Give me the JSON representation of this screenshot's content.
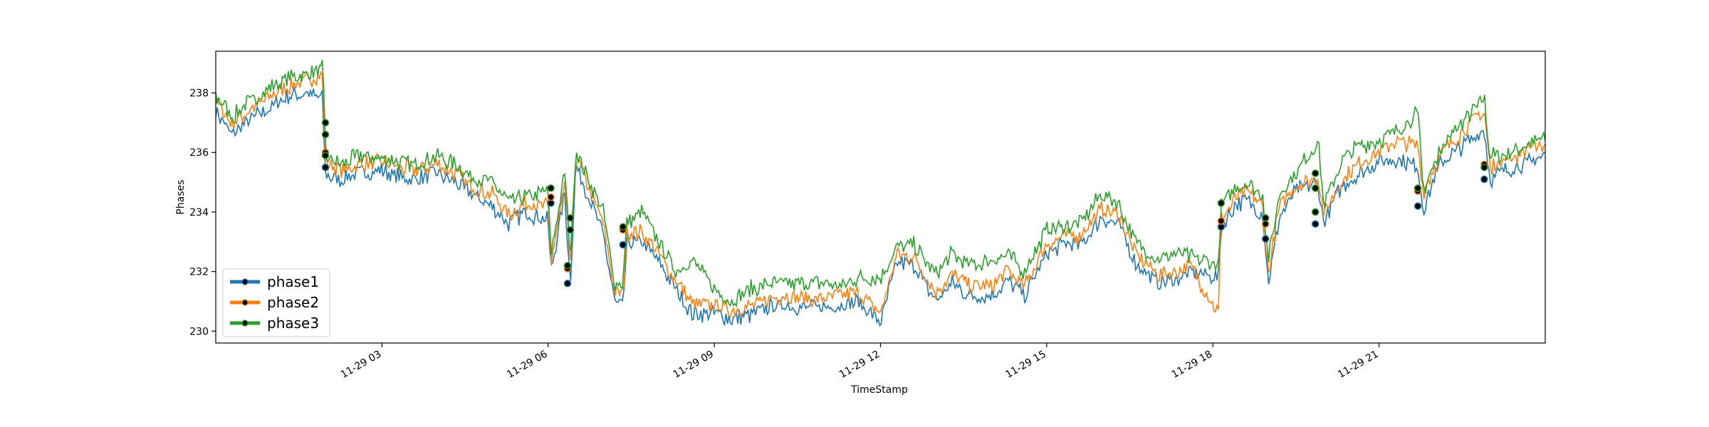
{
  "chart_data": {
    "type": "line",
    "xlabel": "TimeStamp",
    "ylabel": "Phases",
    "x_ticks": [
      "11-29 03",
      "11-29 06",
      "11-29 09",
      "11-29 12",
      "11-29 15",
      "11-29 18",
      "11-29 21"
    ],
    "y_ticks": [
      "230",
      "232",
      "234",
      "236",
      "238"
    ],
    "ylim": [
      229.6,
      239.4
    ],
    "xlim_hours": [
      0,
      24
    ],
    "grid": false,
    "legend": "bottom-left",
    "x": [
      0.0,
      0.3,
      0.6,
      1.0,
      1.3,
      1.6,
      1.94,
      1.96,
      2.0,
      2.3,
      2.6,
      3.0,
      3.3,
      3.6,
      4.0,
      4.3,
      4.6,
      5.0,
      5.3,
      5.6,
      6.0,
      6.05,
      6.3,
      6.4,
      6.5,
      6.8,
      7.0,
      7.2,
      7.35,
      7.42,
      7.7,
      8.0,
      8.3,
      8.6,
      9.0,
      9.3,
      9.6,
      10.0,
      10.3,
      10.6,
      11.0,
      11.3,
      11.6,
      12.0,
      12.3,
      12.6,
      13.0,
      13.3,
      13.6,
      14.0,
      14.3,
      14.6,
      15.0,
      15.3,
      15.6,
      16.0,
      16.3,
      16.6,
      17.0,
      17.3,
      17.6,
      18.1,
      18.15,
      18.4,
      18.6,
      18.9,
      19.0,
      19.2,
      19.5,
      19.9,
      20.0,
      20.3,
      20.6,
      21.0,
      21.3,
      21.7,
      21.8,
      22.1,
      22.5,
      22.9,
      23.0,
      23.3,
      23.6,
      24.0
    ],
    "series": [
      {
        "name": "phase1",
        "color": "#1f77b4",
        "values": [
          237.4,
          236.6,
          237.1,
          237.5,
          237.9,
          238.0,
          237.8,
          235.5,
          235.2,
          235.1,
          235.3,
          235.4,
          235.2,
          235.1,
          235.3,
          235.0,
          234.6,
          234.2,
          233.6,
          234.0,
          233.7,
          232.0,
          234.6,
          231.6,
          235.6,
          234.2,
          233.2,
          231.0,
          230.8,
          232.9,
          233.0,
          232.3,
          231.4,
          230.6,
          230.6,
          230.4,
          230.5,
          230.8,
          230.9,
          230.8,
          230.8,
          230.9,
          231.0,
          230.3,
          232.3,
          232.2,
          231.0,
          231.6,
          231.2,
          231.2,
          231.7,
          231.2,
          232.6,
          232.9,
          232.9,
          233.8,
          233.6,
          232.3,
          231.6,
          231.7,
          232.0,
          231.8,
          233.5,
          234.2,
          234.4,
          233.9,
          231.6,
          233.8,
          234.7,
          235.0,
          233.6,
          234.8,
          235.2,
          235.7,
          235.8,
          235.5,
          234.1,
          235.6,
          236.2,
          236.8,
          235.1,
          235.4,
          235.6,
          235.9
        ]
      },
      {
        "name": "phase2",
        "color": "#ff7f0e",
        "values": [
          237.7,
          237.0,
          237.4,
          237.9,
          238.2,
          238.4,
          238.6,
          235.9,
          235.6,
          235.4,
          235.6,
          235.7,
          235.5,
          235.4,
          235.6,
          235.3,
          234.9,
          234.6,
          233.9,
          234.3,
          234.2,
          232.3,
          234.9,
          232.2,
          235.9,
          234.5,
          233.6,
          231.3,
          231.2,
          233.3,
          233.3,
          232.6,
          231.7,
          230.9,
          230.9,
          230.7,
          230.8,
          231.1,
          231.2,
          231.1,
          231.1,
          231.2,
          231.3,
          230.6,
          232.6,
          232.5,
          231.3,
          231.9,
          231.5,
          231.5,
          232.0,
          231.5,
          232.9,
          233.2,
          233.2,
          234.1,
          233.9,
          232.6,
          231.9,
          232.0,
          232.2,
          230.6,
          233.8,
          234.4,
          234.7,
          234.2,
          231.9,
          234.2,
          234.9,
          235.2,
          233.9,
          235.0,
          235.6,
          236.0,
          236.4,
          236.2,
          234.7,
          235.9,
          236.7,
          237.4,
          235.5,
          235.7,
          236.0,
          236.3
        ]
      },
      {
        "name": "phase3",
        "color": "#2ca02c",
        "values": [
          237.9,
          237.2,
          237.7,
          238.2,
          238.5,
          238.6,
          238.8,
          236.9,
          235.8,
          235.6,
          235.9,
          235.8,
          235.7,
          235.6,
          235.9,
          235.6,
          235.2,
          235.0,
          234.3,
          234.5,
          234.7,
          232.6,
          235.3,
          232.5,
          236.1,
          234.8,
          234.0,
          231.6,
          231.6,
          233.6,
          234.0,
          233.0,
          232.0,
          232.4,
          231.4,
          231.0,
          231.4,
          231.6,
          231.6,
          231.6,
          231.6,
          231.5,
          231.8,
          231.8,
          232.8,
          232.9,
          231.9,
          232.6,
          232.2,
          232.4,
          232.6,
          232.0,
          233.4,
          233.5,
          233.6,
          234.6,
          234.3,
          233.0,
          232.4,
          232.6,
          232.5,
          232.2,
          234.2,
          234.8,
          235.0,
          234.6,
          232.3,
          234.6,
          235.3,
          236.4,
          234.2,
          235.6,
          236.2,
          236.4,
          236.7,
          237.3,
          234.7,
          236.1,
          237.0,
          237.8,
          235.9,
          235.9,
          236.2,
          236.5
        ]
      }
    ],
    "markers": [
      {
        "series": "phase1",
        "points": [
          [
            1.98,
            235.5
          ],
          [
            6.05,
            234.3
          ],
          [
            6.35,
            231.6
          ],
          [
            7.35,
            232.9
          ],
          [
            18.15,
            233.5
          ],
          [
            18.95,
            233.1
          ],
          [
            19.85,
            233.6
          ],
          [
            21.7,
            234.2
          ],
          [
            22.9,
            235.1
          ]
        ]
      },
      {
        "series": "phase2",
        "points": [
          [
            1.98,
            236.0
          ],
          [
            6.05,
            234.5
          ],
          [
            6.35,
            232.1
          ],
          [
            7.35,
            233.4
          ],
          [
            18.15,
            233.7
          ],
          [
            18.95,
            233.6
          ],
          [
            19.85,
            234.0
          ],
          [
            21.7,
            234.7
          ],
          [
            22.9,
            235.6
          ]
        ]
      },
      {
        "series": "phase3",
        "points": [
          [
            1.98,
            237.0
          ],
          [
            1.98,
            236.6
          ],
          [
            1.98,
            235.9
          ],
          [
            6.05,
            234.8
          ],
          [
            6.4,
            233.8
          ],
          [
            6.4,
            233.4
          ],
          [
            6.35,
            232.2
          ],
          [
            7.35,
            233.5
          ],
          [
            18.15,
            234.3
          ],
          [
            18.95,
            233.8
          ],
          [
            19.85,
            235.3
          ],
          [
            19.85,
            234.8
          ],
          [
            19.85,
            234.0
          ],
          [
            21.7,
            234.8
          ],
          [
            22.9,
            235.5
          ]
        ]
      }
    ]
  }
}
